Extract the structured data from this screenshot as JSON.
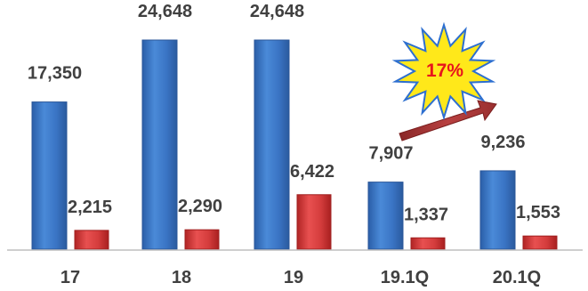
{
  "chart_data": {
    "type": "bar",
    "categories": [
      "17",
      "18",
      "19",
      "19.1Q",
      "20.1Q"
    ],
    "series": [
      {
        "values": [
          17350,
          24648,
          24648,
          7907,
          9236
        ],
        "labels": [
          "17,350",
          "24,648",
          "24,648",
          "7,907",
          "9,236"
        ],
        "color": "#3c78c8"
      },
      {
        "values": [
          2215,
          2290,
          6422,
          1337,
          1553
        ],
        "labels": [
          "2,215",
          "2,290",
          "6,422",
          "1,337",
          "1,553"
        ],
        "color": "#d63a3a"
      }
    ],
    "annotation": {
      "text": "17%",
      "burst_color": "#ffe81a",
      "burst_outline": "#2d6fd0",
      "arrow_color": "#a83434"
    },
    "grid": false
  }
}
